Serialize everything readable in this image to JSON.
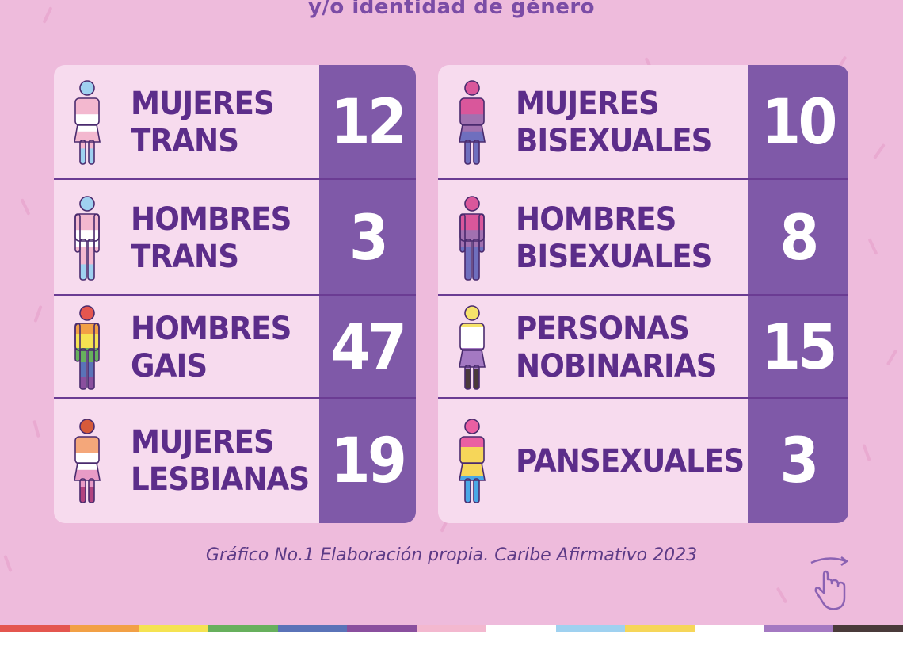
{
  "subtitle": "y/o identidad de género",
  "left_groups": [
    {
      "label_line1": "MUJERES",
      "label_line2": "TRANS",
      "value": "12",
      "icon": "trans-woman-icon",
      "colors": [
        "#9fd1f0",
        "#f3b8cf",
        "#ffffff",
        "#f3b8cf",
        "#9fd1f0"
      ]
    },
    {
      "label_line1": "HOMBRES",
      "label_line2": "TRANS",
      "value": "3",
      "icon": "trans-man-icon",
      "colors": [
        "#9fd1f0",
        "#f3b8cf",
        "#ffffff",
        "#f3b8cf",
        "#9fd1f0"
      ]
    },
    {
      "label_line1": "HOMBRES",
      "label_line2": "GAIS",
      "value": "47",
      "icon": "gay-man-icon",
      "colors": [
        "#e4564f",
        "#f2a045",
        "#f5e351",
        "#67b05d",
        "#5a73b8",
        "#8a4f9e"
      ]
    },
    {
      "label_line1": "MUJERES",
      "label_line2": "LESBIANAS",
      "value": "19",
      "icon": "lesbian-woman-icon",
      "colors": [
        "#d65a3a",
        "#f4a77a",
        "#ffffff",
        "#e89bc6",
        "#b2437f"
      ]
    }
  ],
  "right_groups": [
    {
      "label_line1": "MUJERES",
      "label_line2": "BISEXUALES",
      "value": "10",
      "icon": "bisexual-woman-icon",
      "colors": [
        "#d9579b",
        "#d9579b",
        "#a171b0",
        "#6f6fbe",
        "#6f6fbe"
      ]
    },
    {
      "label_line1": "HOMBRES",
      "label_line2": "BISEXUALES",
      "value": "8",
      "icon": "bisexual-man-icon",
      "colors": [
        "#d9579b",
        "#d9579b",
        "#a171b0",
        "#6f6fbe",
        "#6f6fbe"
      ]
    },
    {
      "label_line1": "PERSONAS",
      "label_line2": "NOBINARIAS",
      "value": "15",
      "icon": "nonbinary-person-icon",
      "colors": [
        "#f6e36a",
        "#ffffff",
        "#a479c2",
        "#4a3a3a"
      ]
    },
    {
      "label_line1": "PANSEXUALES",
      "label_line2": "",
      "value": "3",
      "icon": "pansexual-person-icon",
      "colors": [
        "#ea5fa2",
        "#f6d659",
        "#4aa8e6"
      ]
    }
  ],
  "caption": "Gráfico No.1 Elaboración propia. Caribe Afirmativo 2023",
  "footer_stripe_colors": [
    "#e4564f",
    "#f2a045",
    "#f5e351",
    "#67b05d",
    "#5a73b8",
    "#8a4f9e",
    "#f3b8cf",
    "#ffffff",
    "#9fd1f0",
    "#f6d659",
    "#ffffff",
    "#a479c2",
    "#4a3a3a"
  ]
}
